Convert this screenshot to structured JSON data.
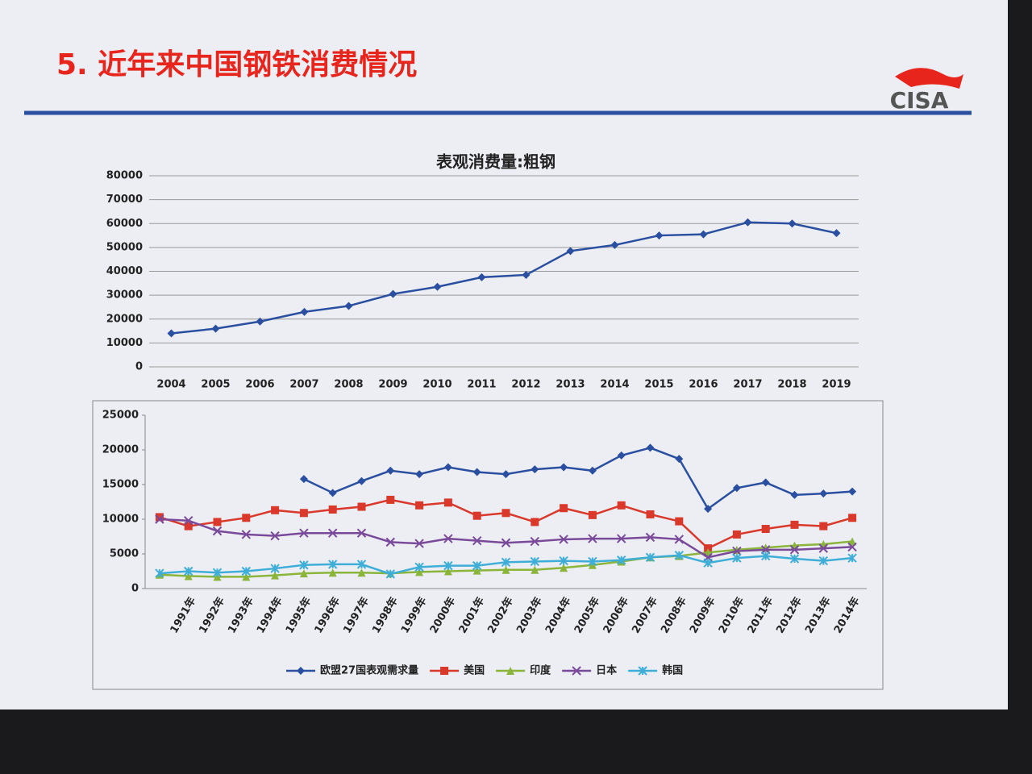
{
  "slide": {
    "title": "5. 近年来中国钢铁消费情况",
    "logo": "CISA"
  },
  "chart_data": [
    {
      "type": "line",
      "title": "表观消费量:粗钢",
      "categories": [
        "2004",
        "2005",
        "2006",
        "2007",
        "2008",
        "2009",
        "2010",
        "2011",
        "2012",
        "2013",
        "2014",
        "2015",
        "2016",
        "2017",
        "2018",
        "2019"
      ],
      "values": [
        14000,
        16000,
        19000,
        23000,
        25500,
        30500,
        33500,
        37500,
        38500,
        48500,
        51000,
        55000,
        55500,
        60500,
        60000,
        56000
      ],
      "color": "#2a4fa0",
      "marker": "diamond",
      "ylim": [
        0,
        80000
      ],
      "yticks": [
        0,
        10000,
        20000,
        30000,
        40000,
        50000,
        60000,
        70000,
        80000
      ],
      "grid": true
    },
    {
      "type": "line",
      "categories": [
        null,
        "1991年",
        "1992年",
        "1993年",
        "1994年",
        "1995年",
        "1996年",
        "1997年",
        "1998年",
        "1999年",
        "2000年",
        "2001年",
        "2002年",
        "2003年",
        "2004年",
        "2005年",
        "2006年",
        "2007年",
        "2008年",
        "2009年",
        "2010年",
        "2011年",
        "2012年",
        "2013年",
        "2014年"
      ],
      "series": [
        {
          "name": "欧盟27国表观需求量",
          "color": "#2a4fa0",
          "marker": "diamond",
          "values": [
            null,
            null,
            null,
            null,
            null,
            15800,
            13800,
            15500,
            17000,
            16500,
            17500,
            16800,
            16500,
            17200,
            17500,
            17000,
            19200,
            20300,
            18700,
            11500,
            14500,
            15300,
            13500,
            13700,
            14000
          ]
        },
        {
          "name": "美国",
          "color": "#d9382a",
          "marker": "square",
          "values": [
            10300,
            9000,
            9600,
            10200,
            11300,
            10900,
            11400,
            11800,
            12800,
            12000,
            12400,
            10500,
            10900,
            9600,
            11600,
            10600,
            12000,
            10700,
            9700,
            5800,
            7800,
            8600,
            9200,
            9000,
            10200
          ]
        },
        {
          "name": "印度",
          "color": "#8ab53a",
          "marker": "triangle",
          "values": [
            2000,
            1800,
            1700,
            1700,
            1900,
            2200,
            2300,
            2300,
            2200,
            2400,
            2500,
            2600,
            2700,
            2700,
            3000,
            3400,
            3900,
            4500,
            4700,
            5200,
            5600,
            5900,
            6200,
            6400,
            6800
          ]
        },
        {
          "name": "日本",
          "color": "#7a4a9a",
          "marker": "x",
          "values": [
            10000,
            9800,
            8300,
            7800,
            7600,
            8000,
            8000,
            8000,
            6700,
            6500,
            7200,
            6900,
            6600,
            6800,
            7100,
            7200,
            7200,
            7400,
            7100,
            4500,
            5400,
            5600,
            5600,
            5800,
            6000
          ]
        },
        {
          "name": "韩国",
          "color": "#3eaed8",
          "marker": "star",
          "values": [
            2200,
            2500,
            2300,
            2500,
            2900,
            3400,
            3500,
            3500,
            2100,
            3100,
            3300,
            3300,
            3800,
            3900,
            4000,
            3900,
            4100,
            4500,
            4800,
            3700,
            4400,
            4700,
            4300,
            4000,
            4400
          ]
        }
      ],
      "ylim": [
        0,
        25000
      ],
      "yticks": [
        0,
        5000,
        10000,
        15000,
        20000,
        25000
      ],
      "grid": false
    }
  ]
}
